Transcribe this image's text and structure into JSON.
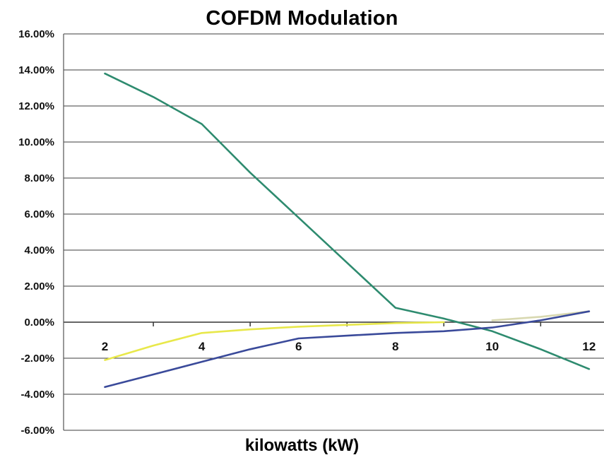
{
  "chart_data": {
    "type": "line",
    "title": "COFDM Modulation",
    "xlabel": "kilowatts (kW)",
    "ylabel": "",
    "x_ticks": [
      "2",
      "4",
      "6",
      "8",
      "10",
      "12"
    ],
    "x_tick_values": [
      2,
      4,
      6,
      8,
      10,
      12
    ],
    "xlim": [
      1,
      12.6
    ],
    "y_ticks": [
      "16.00%",
      "14.00%",
      "12.00%",
      "10.00%",
      "8.00%",
      "6.00%",
      "4.00%",
      "2.00%",
      "0.00%",
      "-2.00%",
      "-4.00%",
      "-6.00%"
    ],
    "ylim": [
      -6,
      16
    ],
    "y_unit": "%",
    "grid": "horizontal",
    "legend": "none",
    "series": [
      {
        "color": "#2e8b6f",
        "points": [
          [
            2,
            13.8
          ],
          [
            3,
            12.5
          ],
          [
            4,
            11.0
          ],
          [
            5,
            8.3
          ],
          [
            6,
            5.8
          ],
          [
            7,
            3.3
          ],
          [
            8,
            0.8
          ],
          [
            9,
            0.2
          ],
          [
            10,
            -0.5
          ],
          [
            11,
            -1.5
          ],
          [
            12,
            -2.6
          ]
        ]
      },
      {
        "color": "#e8e84a",
        "points": [
          [
            2,
            -2.1
          ],
          [
            3,
            -1.3
          ],
          [
            4,
            -0.6
          ],
          [
            5,
            -0.4
          ],
          [
            6,
            -0.25
          ],
          [
            7,
            -0.15
          ],
          [
            8,
            -0.05
          ],
          [
            9,
            0.0
          ]
        ]
      },
      {
        "color": "#d8d8b0",
        "points": [
          [
            10,
            0.1
          ],
          [
            11,
            0.3
          ],
          [
            12,
            0.6
          ]
        ]
      },
      {
        "color": "#3a4a9a",
        "points": [
          [
            2,
            -3.6
          ],
          [
            3,
            -2.9
          ],
          [
            4,
            -2.2
          ],
          [
            5,
            -1.5
          ],
          [
            6,
            -0.9
          ],
          [
            7,
            -0.75
          ],
          [
            8,
            -0.6
          ],
          [
            9,
            -0.5
          ],
          [
            10,
            -0.3
          ],
          [
            11,
            0.1
          ],
          [
            12,
            0.6
          ]
        ]
      }
    ]
  }
}
